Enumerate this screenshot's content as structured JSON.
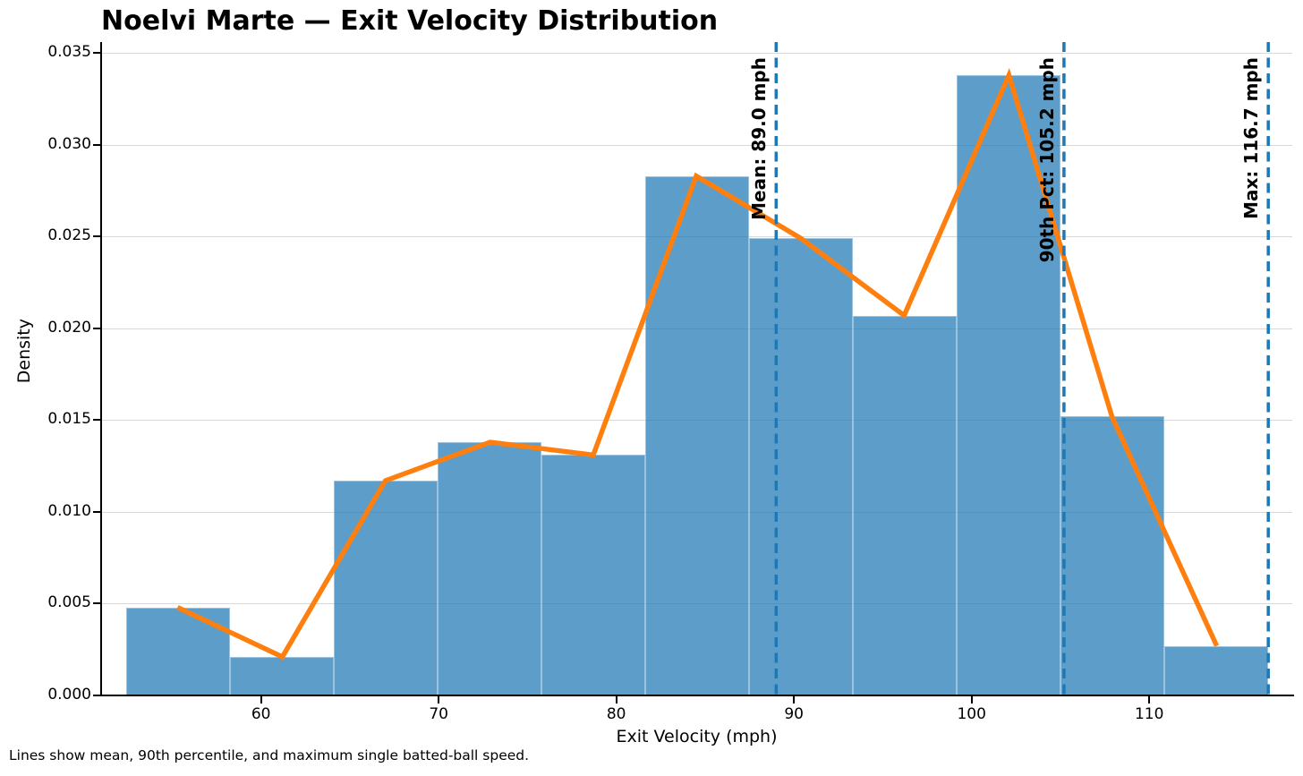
{
  "title": "Noelvi Marte — Exit Velocity Distribution",
  "footnote": "Lines show mean, 90th percentile, and maximum single batted-ball speed.",
  "chart_data": {
    "type": "histogram",
    "title": "Noelvi Marte — Exit Velocity Distribution",
    "xlabel": "Exit Velocity (mph)",
    "ylabel": "Density",
    "xlim": [
      51.0,
      118.05
    ],
    "ylim": [
      0,
      0.0355
    ],
    "grid": true,
    "x_ticks": [
      60,
      70,
      80,
      90,
      100,
      110
    ],
    "y_ticks": [
      0.0,
      0.005,
      0.01,
      0.015,
      0.02,
      0.025,
      0.03,
      0.035
    ],
    "y_tick_labels": [
      "0.000",
      "0.005",
      "0.010",
      "0.015",
      "0.020",
      "0.025",
      "0.030",
      "0.035"
    ],
    "bin_edges": [
      52.4,
      58.25,
      64.09,
      69.94,
      75.78,
      81.63,
      87.47,
      93.32,
      99.16,
      105.01,
      110.85,
      116.7
    ],
    "bin_densities": [
      0.0048,
      0.0021,
      0.0117,
      0.0138,
      0.0131,
      0.0283,
      0.0249,
      0.0207,
      0.0338,
      0.0152,
      0.0027
    ],
    "series": [
      {
        "name": "density-polygon",
        "x": [
          55.3,
          61.2,
          67.0,
          72.9,
          78.7,
          84.5,
          90.4,
          96.2,
          102.1,
          107.9,
          113.8
        ],
        "y": [
          0.0048,
          0.0021,
          0.0117,
          0.0138,
          0.0131,
          0.0283,
          0.0249,
          0.0207,
          0.0338,
          0.0152,
          0.0027
        ]
      }
    ],
    "vlines": [
      {
        "x": 89.0,
        "label": "Mean: 89.0 mph"
      },
      {
        "x": 105.2,
        "label": "90th Pct: 105.2 mph"
      },
      {
        "x": 116.7,
        "label": "Max: 116.7 mph"
      }
    ],
    "colors": {
      "bar_fill": "#1f77b4",
      "bar_alpha": 0.72,
      "line": "#ff7f0e",
      "vline": "#1f77b4",
      "grid": "#d8d8d8",
      "text": "#000000"
    },
    "legend": "none"
  }
}
